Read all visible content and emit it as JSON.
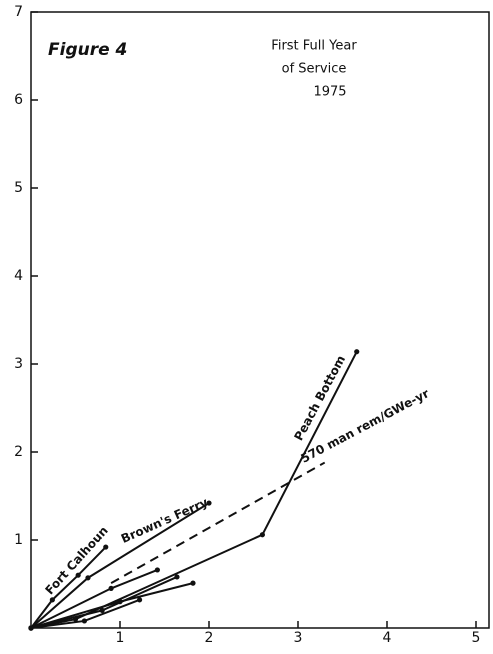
{
  "chart_data": {
    "type": "line",
    "title": "Figure 4",
    "subtitle": [
      "First Full Year",
      "of Service",
      "1975"
    ],
    "xlim": [
      0,
      5
    ],
    "xticks": [
      1,
      2,
      3,
      4,
      5
    ],
    "ylim": [
      0,
      7
    ],
    "yticks": [
      1,
      2,
      3,
      4,
      5,
      6,
      7
    ],
    "series": [
      {
        "name": "Fort Calhoun",
        "color": "#111111",
        "style": "solid",
        "x": [
          0,
          0.24,
          0.53,
          0.84
        ],
        "values": [
          0,
          0.32,
          0.6,
          0.92
        ]
      },
      {
        "name": "Brown's Ferry",
        "color": "#111111",
        "style": "solid",
        "x": [
          0,
          0.64,
          2.0
        ],
        "values": [
          0,
          0.57,
          1.42
        ]
      },
      {
        "name": "Peach Bottom",
        "color": "#111111",
        "style": "solid",
        "x": [
          0,
          0.5,
          2.6,
          3.66
        ],
        "values": [
          0,
          0.1,
          1.06,
          3.14
        ]
      },
      {
        "name": "570 man rem/GWe-yr",
        "color": "#111111",
        "style": "dashed",
        "x": [
          0.9,
          3.3
        ],
        "values": [
          0.51,
          1.88
        ]
      },
      {
        "color": "#111111",
        "style": "solid",
        "x": [
          0,
          0.9,
          1.42
        ],
        "values": [
          0,
          0.45,
          0.66
        ]
      },
      {
        "color": "#111111",
        "style": "solid",
        "x": [
          0,
          0.8,
          1.64
        ],
        "values": [
          0,
          0.2,
          0.58
        ]
      },
      {
        "color": "#111111",
        "style": "solid",
        "x": [
          0,
          1.0,
          1.82
        ],
        "values": [
          0,
          0.3,
          0.51
        ]
      },
      {
        "color": "#111111",
        "style": "solid",
        "x": [
          0,
          0.6,
          1.22
        ],
        "values": [
          0,
          0.08,
          0.32
        ]
      }
    ]
  }
}
